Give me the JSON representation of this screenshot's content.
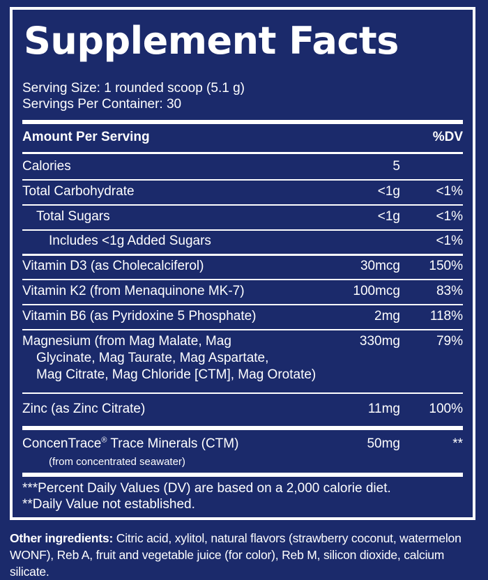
{
  "panel": {
    "title": "Supplement Facts",
    "serving_size": "Serving Size: 1 rounded scoop (5.1 g)",
    "servings_per_container": "Servings Per Container: 30",
    "header_amount": "Amount Per Serving",
    "header_dv": "%DV",
    "rows": [
      {
        "name": "Calories",
        "amount": "5",
        "dv": ""
      },
      {
        "name": "Total Carbohydrate",
        "amount": "<1g",
        "dv": "<1%"
      },
      {
        "name": "Total Sugars",
        "amount": "<1g",
        "dv": "<1%"
      },
      {
        "name": "Includes <1g Added Sugars",
        "amount": "",
        "dv": "<1%"
      },
      {
        "name": "Vitamin D3 (as Cholecalciferol)",
        "amount": "30mcg",
        "dv": "150%"
      },
      {
        "name": "Vitamin K2 (from Menaquinone MK-7)",
        "amount": "100mcg",
        "dv": "83%"
      },
      {
        "name": "Vitamin B6 (as Pyridoxine 5 Phosphate)",
        "amount": "2mg",
        "dv": "118%"
      }
    ],
    "magnesium": {
      "line1": "Magnesium (from Mag Malate, Mag",
      "line2": "Glycinate, Mag Taurate, Mag Aspartate,",
      "line3": "Mag Citrate, Mag Chloride [CTM], Mag Orotate)",
      "amount": "330mg",
      "dv": "79%"
    },
    "zinc": {
      "name": "Zinc (as Zinc Citrate)",
      "amount": "11mg",
      "dv": "100%"
    },
    "ctm": {
      "name": "ConcenTrace",
      "reg": "®",
      "name_rest": " Trace Minerals (CTM)",
      "sub": "(from concentrated seawater)",
      "amount": "50mg",
      "dv": "**"
    },
    "footnote1": "***Percent Daily Values (DV) are based on a 2,000 calorie diet.",
    "footnote2": "**Daily Value not established."
  },
  "other_ingredients": {
    "label": "Other ingredients:",
    "line1": " Citric acid, xylitol, natural flavors (strawberry coconut, watermelon",
    "line2": "WONF), Reb A, fruit and vegetable juice (for color), Reb M, silicon dioxide, calcium silicate."
  }
}
